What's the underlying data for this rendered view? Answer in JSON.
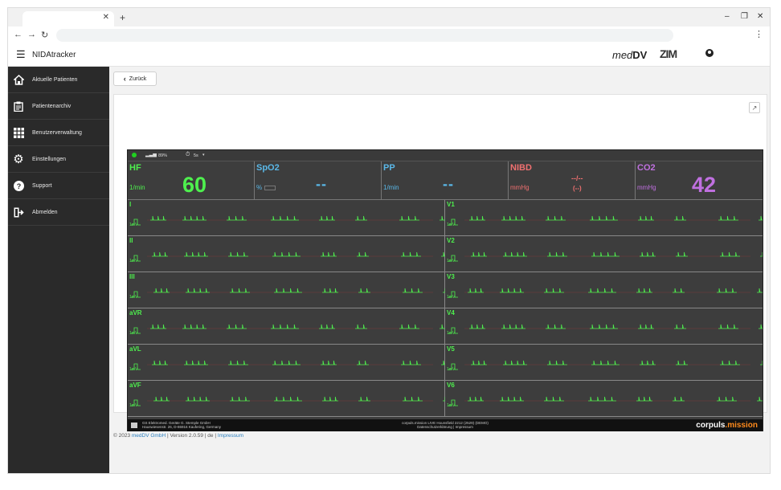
{
  "browser": {
    "close_tab": "✕",
    "new_tab": "+",
    "win_min": "–",
    "win_max": "❐",
    "win_close": "✕",
    "back": "←",
    "forward": "→",
    "reload": "↻",
    "menu": "⋮"
  },
  "app": {
    "title": "NIDAtracker",
    "logo_meddv_italic": "med",
    "logo_meddv_bold": "DV",
    "logo_zim": "ZIM"
  },
  "sidebar": {
    "items": [
      {
        "label": "Aktuelle Patienten",
        "icon": "home-icon"
      },
      {
        "label": "Patientenarchiv",
        "icon": "clipboard-icon"
      },
      {
        "label": "Benutzerverwaltung",
        "icon": "grid-icon"
      },
      {
        "label": "Einstellungen",
        "icon": "gear-icon"
      },
      {
        "label": "Support",
        "icon": "help-icon"
      },
      {
        "label": "Abmelden",
        "icon": "logout-icon"
      }
    ]
  },
  "content": {
    "back_label": "Zurück",
    "footer_copy": "© 2023 ",
    "footer_company": "medDV GmbH",
    "footer_version": " | Version 2.0.59 | de | ",
    "footer_impressum": "Impressum"
  },
  "monitor": {
    "signal": "89%",
    "interval": "5s",
    "params": [
      {
        "name": "HF",
        "unit": "1/min",
        "value": "60",
        "color": "#4ef04e"
      },
      {
        "name": "SpO2",
        "unit": "%",
        "value": "--",
        "color": "#5ab8e8"
      },
      {
        "name": "PP",
        "unit": "1/min",
        "value": "--",
        "color": "#5ab8e8"
      },
      {
        "name": "NIBD",
        "unit": "mmHg",
        "value": "--/--",
        "value2": "(--)",
        "color": "#f07070"
      },
      {
        "name": "CO2",
        "unit": "mmHg",
        "value": "42",
        "color": "#c070e0"
      }
    ],
    "leads_left": [
      "I",
      "II",
      "III",
      "aVR",
      "aVL",
      "aVF"
    ],
    "leads_right": [
      "V1",
      "V2",
      "V3",
      "V4",
      "V5",
      "V6"
    ],
    "lead_unit": "1mV",
    "footer_address_1": "GS Elektromed. Geräte G. Stemple GmbH",
    "footer_address_2": "Hauswiesenstr. 26, D-86916 Kaufering, Germany",
    "footer_mid_1": "corpuls.mission LIVE Hounsfield 2212 (2529) (DEMO)",
    "footer_mid_2": "Datenschutzerklärung  |  Impressum",
    "brand_a": "corpuls",
    "brand_b": ".mission"
  }
}
